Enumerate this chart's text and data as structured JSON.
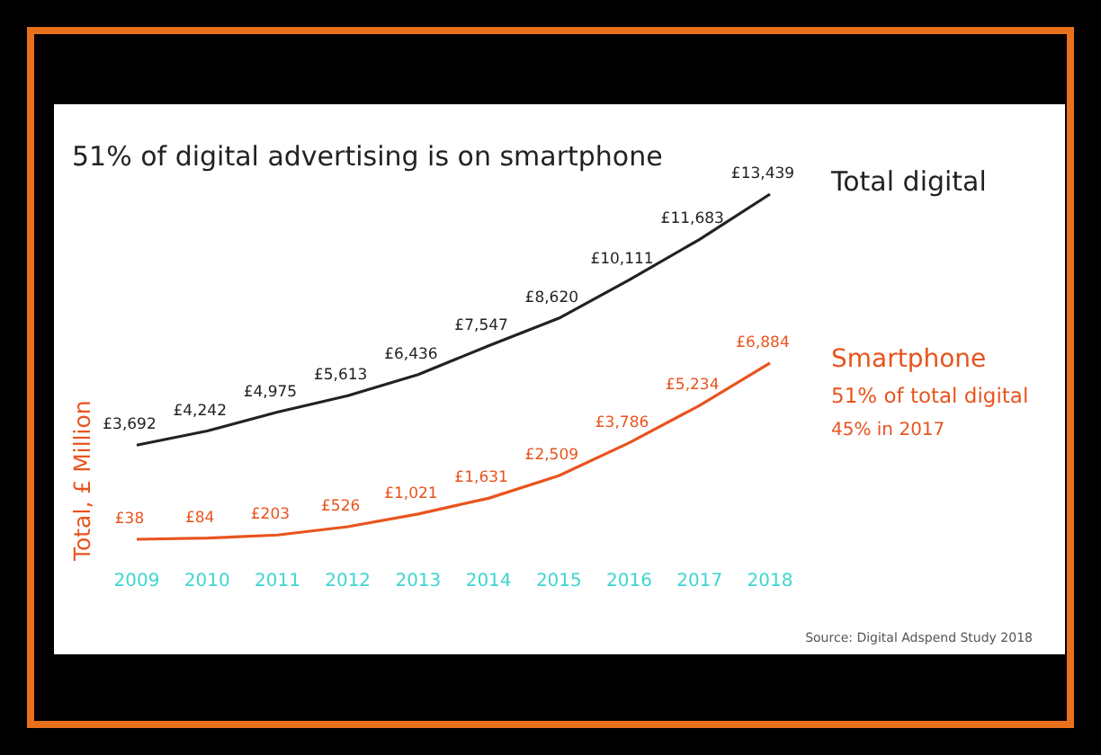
{
  "chart_data": {
    "type": "line",
    "title": "51% of digital advertising is on smartphone",
    "ylabel": "Total, £ Million",
    "categories": [
      "2009",
      "2010",
      "2011",
      "2012",
      "2013",
      "2014",
      "2015",
      "2016",
      "2017",
      "2018"
    ],
    "series": [
      {
        "name": "Total digital",
        "color": "#222222",
        "values": [
          3692,
          4242,
          4975,
          5613,
          6436,
          7547,
          8620,
          10111,
          11683,
          13439
        ],
        "value_labels": [
          "£3,692",
          "£4,242",
          "£4,975",
          "£5,613",
          "£6,436",
          "£7,547",
          "£8,620",
          "£10,111",
          "£11,683",
          "£13,439"
        ]
      },
      {
        "name": "Smartphone",
        "color": "#e8541e",
        "values": [
          38,
          84,
          203,
          526,
          1021,
          1631,
          2509,
          3786,
          5234,
          6884
        ],
        "value_labels": [
          "£38",
          "£84",
          "£203",
          "£526",
          "£1,021",
          "£1,631",
          "£2,509",
          "£3,786",
          "£5,234",
          "£6,884"
        ]
      }
    ],
    "legend": "right",
    "marker": "none",
    "line_style": "solid",
    "tick_labels": "x",
    "annotations": [
      "51% of total digital",
      "45% in 2017",
      "Source: Digital Adspend Study 2018"
    ]
  }
}
